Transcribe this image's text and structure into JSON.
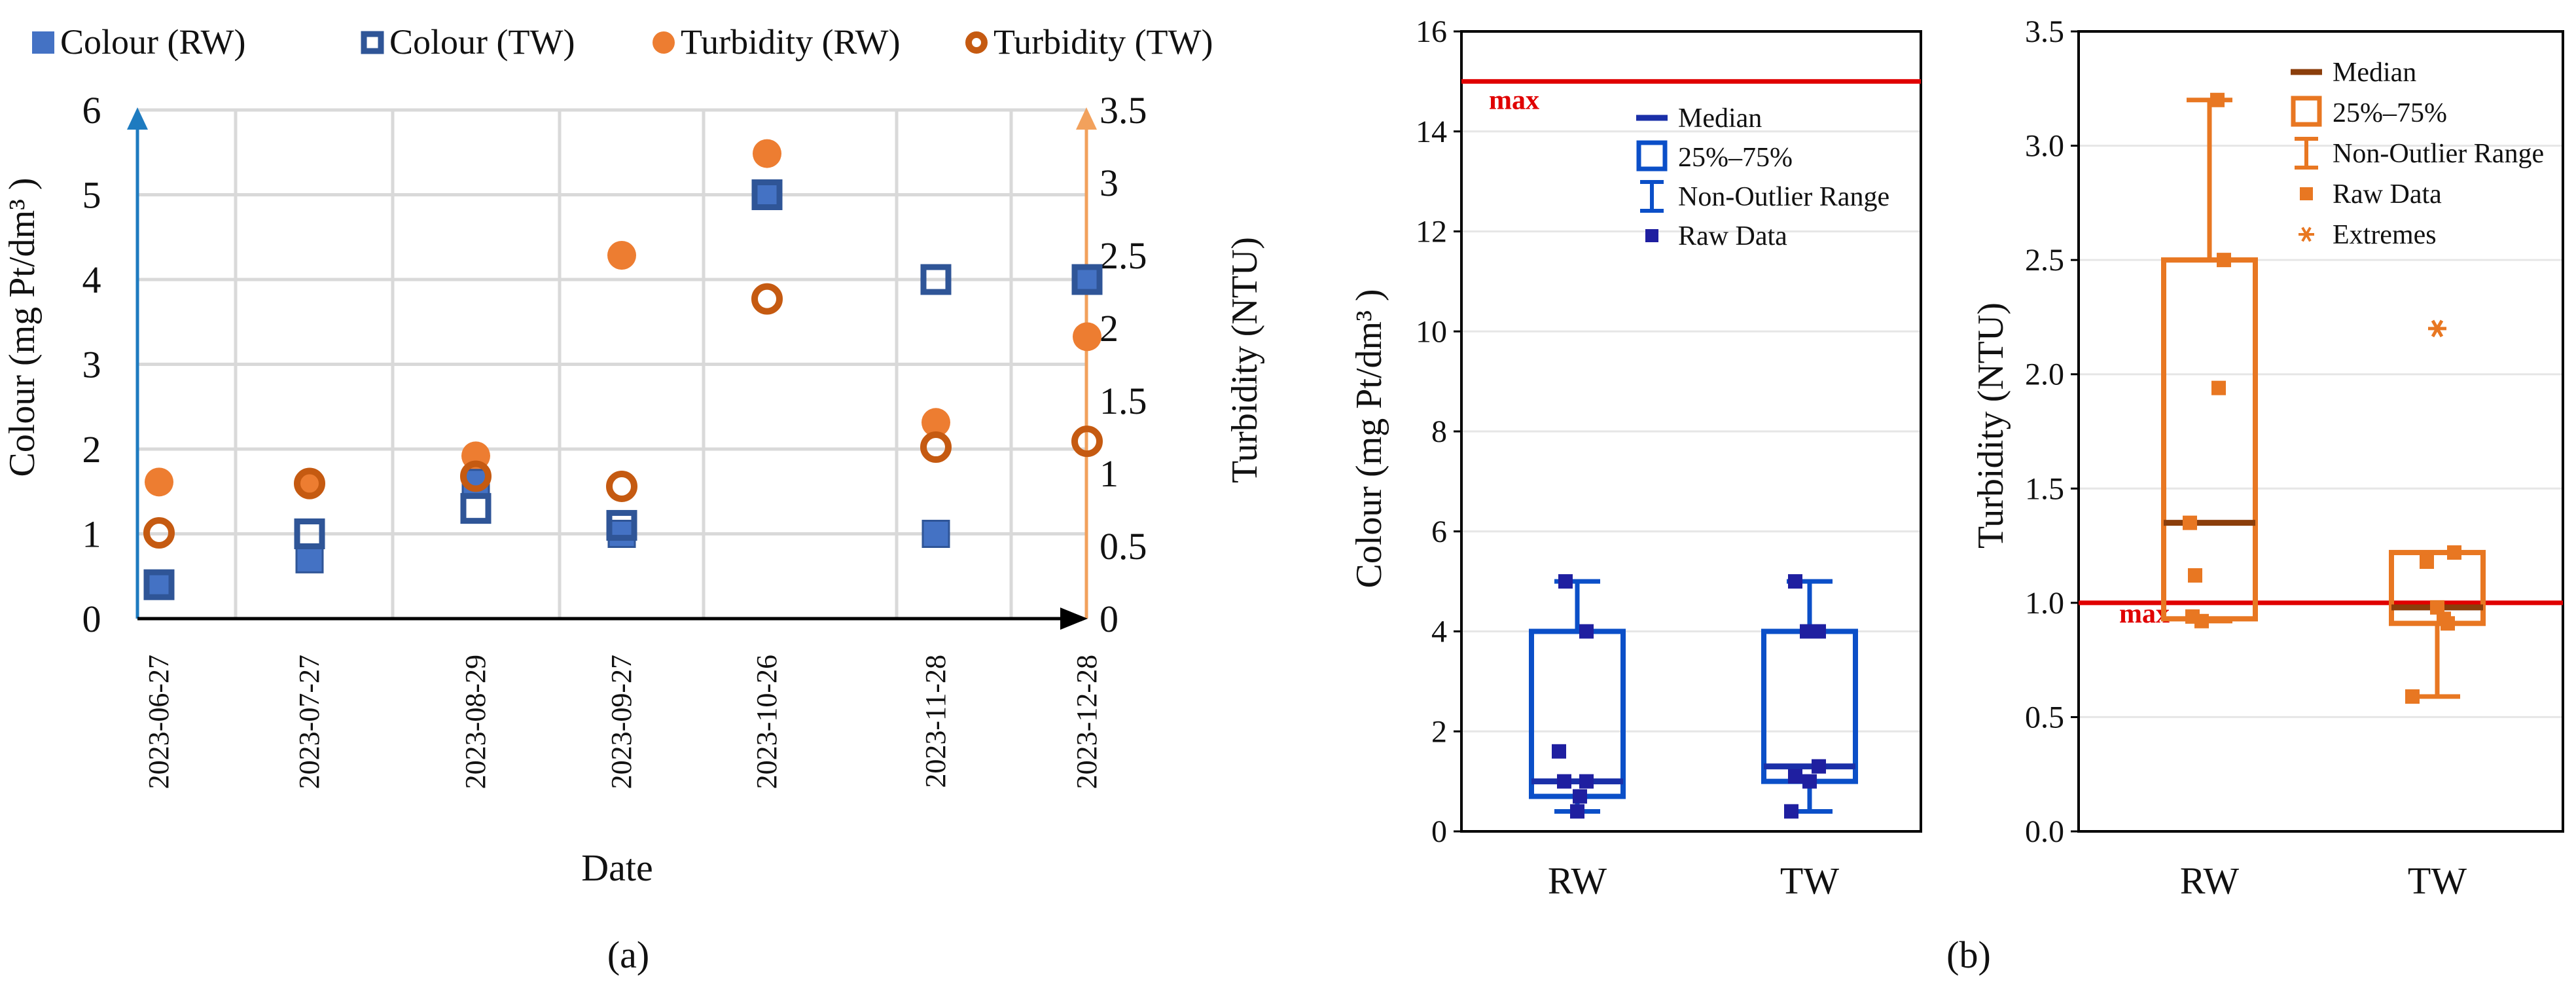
{
  "figure": {
    "panel_a_label": "(a)",
    "panel_b_label": "(b)"
  },
  "colors": {
    "colour_rw": "#4472C4",
    "colour_tw_edge": "#2F5597",
    "turbidity_rw": "#ED7D31",
    "turbidity_tw_edge": "#C55A11",
    "box_blue": "#0B4FC8",
    "box_orange": "#E87722",
    "median_brown": "#8B3E0B",
    "raw_navy": "#1F1FA0",
    "max_red": "#E00000",
    "grid": "#D9D9D9",
    "left_axis_blue": "#1E7BC0",
    "right_axis_orange": "#F2A15C"
  },
  "chart_data": [
    {
      "type": "scatter",
      "id": "panel-a",
      "legend": [
        "Colour (RW)",
        "Colour (TW)",
        "Turbidity (RW)",
        "Turbidity (TW)"
      ],
      "legend_position": "top",
      "xlabel": "Date",
      "ylabel_left": "Colour (mg Pt/dm³ )",
      "ylabel_right": "Turbidity (NTU)",
      "x_categories": [
        "2023-06-27",
        "2023-07-27",
        "2023-08-29",
        "2023-09-27",
        "2023-10-26",
        "2023-11-28",
        "2023-12-28"
      ],
      "ylim_left": [
        0,
        6
      ],
      "yticks_left": [
        "0",
        "1",
        "2",
        "3",
        "4",
        "5",
        "6"
      ],
      "ylim_right": [
        0,
        3.5
      ],
      "yticks_right": [
        "0",
        "0.5",
        "1",
        "1.5",
        "2",
        "2.5",
        "3",
        "3.5"
      ],
      "grid": true,
      "series": [
        {
          "name": "Colour (RW)",
          "axis": "left",
          "marker": "filled-square",
          "values": [
            0.4,
            0.7,
            1.6,
            1.0,
            5.0,
            1.0,
            4.0
          ]
        },
        {
          "name": "Colour (TW)",
          "axis": "left",
          "marker": "open-square",
          "values": [
            0.4,
            1.0,
            1.3,
            1.1,
            5.0,
            4.0,
            4.0
          ]
        },
        {
          "name": "Turbidity (RW)",
          "axis": "right",
          "marker": "filled-circle",
          "values": [
            0.94,
            0.92,
            1.12,
            2.5,
            3.2,
            1.35,
            1.94
          ]
        },
        {
          "name": "Turbidity (TW)",
          "axis": "right",
          "marker": "open-circle",
          "values": [
            0.59,
            0.93,
            0.98,
            0.91,
            2.2,
            1.18,
            1.22
          ]
        }
      ]
    },
    {
      "type": "box",
      "id": "panel-b-colour",
      "ylabel": "Colour (mg Pt/dm³ )",
      "ylim": [
        0,
        16
      ],
      "yticks": [
        "0",
        "2",
        "4",
        "6",
        "8",
        "10",
        "12",
        "14",
        "16"
      ],
      "categories": [
        "RW",
        "TW"
      ],
      "limit_value": 15,
      "limit_label": "max",
      "legend": [
        "Median",
        "25%–75%",
        "Non-Outlier Range",
        "Raw Data"
      ],
      "legend_position": "upper-right",
      "boxes": [
        {
          "category": "RW",
          "q1": 0.7,
          "median": 1.0,
          "q3": 4.0,
          "whisker_low": 0.4,
          "whisker_high": 5.0,
          "raw": [
            0.4,
            0.7,
            1.0,
            1.0,
            1.6,
            4.0,
            5.0
          ]
        },
        {
          "category": "TW",
          "q1": 1.0,
          "median": 1.3,
          "q3": 4.0,
          "whisker_low": 0.4,
          "whisker_high": 5.0,
          "raw": [
            0.4,
            1.0,
            1.1,
            1.3,
            4.0,
            4.0,
            5.0
          ]
        }
      ]
    },
    {
      "type": "box",
      "id": "panel-b-turbidity",
      "ylabel": "Turbidity (NTU)",
      "ylim": [
        0,
        3.5
      ],
      "yticks": [
        "0.0",
        "0.5",
        "1.0",
        "1.5",
        "2.0",
        "2.5",
        "3.0",
        "3.5"
      ],
      "categories": [
        "RW",
        "TW"
      ],
      "limit_value": 1.0,
      "limit_label": "max",
      "legend": [
        "Median",
        "25%–75%",
        "Non-Outlier Range",
        "Raw Data",
        "Extremes"
      ],
      "legend_position": "upper-right",
      "boxes": [
        {
          "category": "RW",
          "q1": 0.93,
          "median": 1.35,
          "q3": 2.5,
          "whisker_low": 0.92,
          "whisker_high": 3.2,
          "raw": [
            0.92,
            0.94,
            1.12,
            1.35,
            1.94,
            2.5,
            3.2
          ],
          "extremes": []
        },
        {
          "category": "TW",
          "q1": 0.91,
          "median": 0.98,
          "q3": 1.22,
          "whisker_low": 0.59,
          "whisker_high": 1.22,
          "raw": [
            0.59,
            0.91,
            0.93,
            0.98,
            1.18,
            1.22
          ],
          "extremes": [
            2.2
          ]
        }
      ]
    }
  ]
}
